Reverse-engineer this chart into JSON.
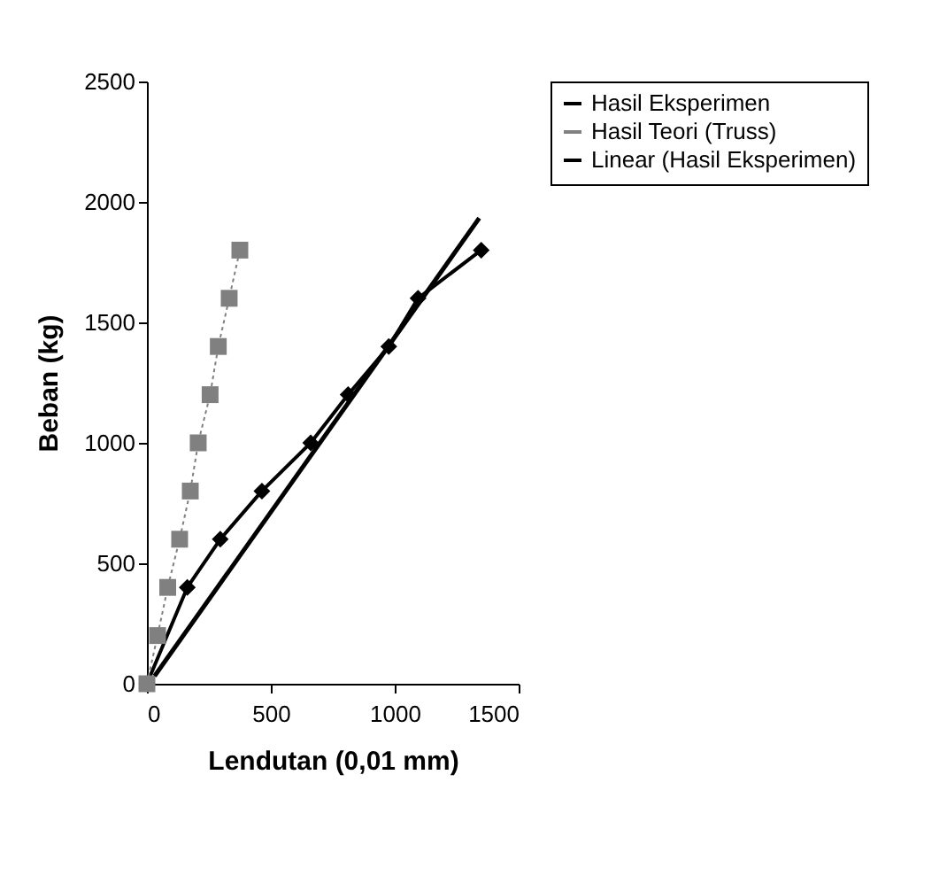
{
  "chart_data": {
    "type": "line",
    "xlabel": "Lendutan (0,01 mm)",
    "ylabel": "Beban (kg)",
    "xlim": [
      0,
      1500
    ],
    "xticks": [
      0,
      500,
      1000,
      1500
    ],
    "ylim": [
      0,
      2500
    ],
    "yticks": [
      0,
      500,
      1000,
      1500,
      2000,
      2500
    ],
    "grid": false,
    "legend": "right",
    "series": [
      {
        "name": "Hasil Eksperimen",
        "color": "#000000",
        "marker": "diamond",
        "line_style": "solid",
        "x": [
          0,
          163,
          296,
          464,
          661,
          812,
          976,
          1094,
          1349
        ],
        "values": [
          0,
          400,
          600,
          800,
          1000,
          1200,
          1400,
          1600,
          1800
        ]
      },
      {
        "name": "Hasil Teori (Truss)",
        "color": "#808080",
        "marker": "square",
        "line_style": "dotted",
        "x": [
          0,
          43,
          84,
          132,
          175,
          207,
          255,
          288,
          332,
          375
        ],
        "values": [
          0,
          200,
          400,
          600,
          800,
          1000,
          1200,
          1400,
          1600,
          1800
        ]
      },
      {
        "name": "Linear (Hasil Eksperimen)",
        "color": "#000000",
        "marker": "none",
        "line_style": "solid",
        "x": [
          31,
          1341
        ],
        "values": [
          32,
          1933
        ]
      }
    ]
  }
}
